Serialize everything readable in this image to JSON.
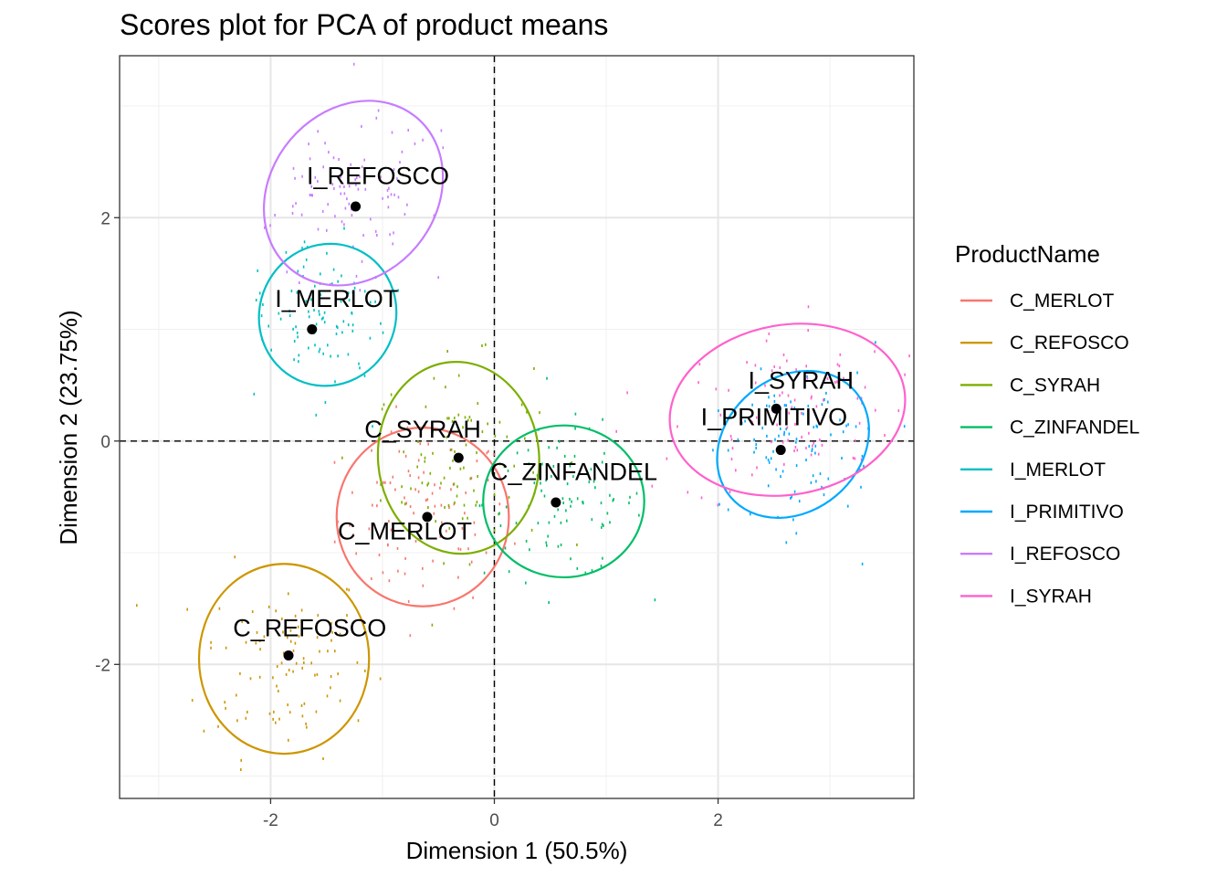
{
  "chart_data": {
    "type": "scatter",
    "title": "Scores plot for PCA of product means",
    "xlabel": "Dimension 1 (50.5%)",
    "ylabel": "Dimension 2 (23.75%)",
    "xlim": [
      -3.35,
      3.75
    ],
    "ylim": [
      -3.2,
      3.45
    ],
    "x_ticks": [
      -2,
      0,
      2
    ],
    "y_ticks": [
      -2,
      0,
      2
    ],
    "x_tick_labels": [
      "-2",
      "0",
      "2"
    ],
    "y_tick_labels": [
      "-2",
      "0",
      "2"
    ],
    "grid": true,
    "reference_lines": {
      "x": 0,
      "y": 0,
      "style": "dashed"
    },
    "legend": {
      "title": "ProductName",
      "placement": "right"
    },
    "series": [
      {
        "name": "C_MERLOT",
        "color": "#F8766D",
        "centroid": [
          -0.6,
          -0.68
        ],
        "ellipse": {
          "cx": -0.64,
          "cy": -0.68,
          "rx": 0.77,
          "ry": 0.8,
          "angle": 0
        },
        "label_pos": [
          -0.8,
          -0.88
        ]
      },
      {
        "name": "C_REFOSCO",
        "color": "#CD9600",
        "centroid": [
          -1.84,
          -1.92
        ],
        "ellipse": {
          "cx": -1.88,
          "cy": -1.95,
          "rx": 0.76,
          "ry": 0.85,
          "angle": 0
        },
        "label_pos": [
          -1.65,
          -1.75
        ]
      },
      {
        "name": "C_SYRAH",
        "color": "#7CAE00",
        "centroid": [
          -0.32,
          -0.15
        ],
        "ellipse": {
          "cx": -0.32,
          "cy": -0.15,
          "rx": 0.72,
          "ry": 0.86,
          "angle": 5
        },
        "label_pos": [
          -0.64,
          0.03
        ]
      },
      {
        "name": "C_ZINFANDEL",
        "color": "#00BE67",
        "centroid": [
          0.55,
          -0.55
        ],
        "ellipse": {
          "cx": 0.62,
          "cy": -0.54,
          "rx": 0.72,
          "ry": 0.68,
          "angle": 0
        },
        "label_pos": [
          0.71,
          -0.35
        ]
      },
      {
        "name": "I_MERLOT",
        "color": "#00BFC4",
        "centroid": [
          -1.63,
          1.0
        ],
        "ellipse": {
          "cx": -1.49,
          "cy": 1.13,
          "rx": 0.64,
          "ry": 0.61,
          "angle": 65
        },
        "label_pos": [
          -1.41,
          1.2
        ]
      },
      {
        "name": "I_PRIMITIVO",
        "color": "#00A9FF",
        "centroid": [
          2.56,
          -0.08
        ],
        "ellipse": {
          "cx": 2.67,
          "cy": -0.03,
          "rx": 0.73,
          "ry": 0.6,
          "angle": 40
        },
        "label_pos": [
          2.5,
          0.14
        ]
      },
      {
        "name": "I_REFOSCO",
        "color": "#C77CFF",
        "centroid": [
          -1.24,
          2.1
        ],
        "ellipse": {
          "cx": -1.26,
          "cy": 2.22,
          "rx": 0.88,
          "ry": 0.74,
          "angle": 50
        },
        "label_pos": [
          -1.04,
          2.3
        ]
      },
      {
        "name": "I_SYRAH",
        "color": "#FF61CC",
        "centroid": [
          2.52,
          0.29
        ],
        "ellipse": {
          "cx": 2.62,
          "cy": 0.28,
          "rx": 1.06,
          "ry": 0.76,
          "angle": 10
        },
        "label_pos": [
          2.74,
          0.47
        ]
      }
    ]
  }
}
